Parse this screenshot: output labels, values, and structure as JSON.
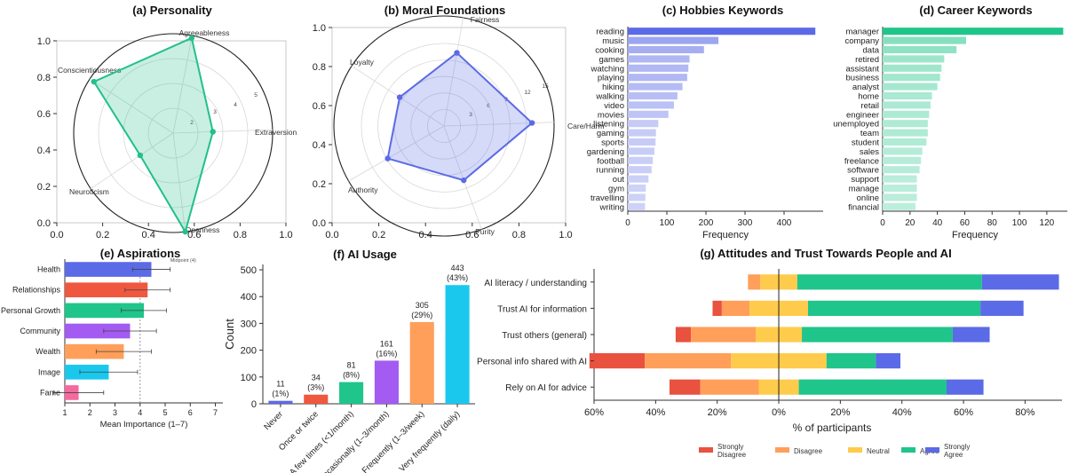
{
  "chart_data": [
    {
      "id": "personality",
      "type": "radar",
      "title": "(a) Personality",
      "axes": [
        "Agreeableness",
        "Extraversion",
        "Openness",
        "Neuroticism",
        "Conscientiousness"
      ],
      "values": [
        4.9,
        2.6,
        5.0,
        2.6,
        4.8
      ],
      "radial_ticks": [
        "2",
        "3",
        "4",
        "5"
      ],
      "radial_range": [
        1,
        5
      ],
      "frame_ticks": [
        "0.0",
        "0.2",
        "0.4",
        "0.6",
        "0.8",
        "1.0"
      ],
      "color": "#22c08a"
    },
    {
      "id": "moral",
      "type": "radar",
      "title": "(b) Moral Foundations",
      "axes": [
        "Fairness",
        "Care/Harm",
        "Purity",
        "Authority",
        "Loyalty"
      ],
      "values": [
        13.5,
        16.0,
        10.5,
        11.8,
        9.6
      ],
      "radial_ticks": [
        "3",
        "6",
        "9",
        "12",
        "15"
      ],
      "radial_range": [
        0,
        20
      ],
      "frame_ticks": [
        "0.0",
        "0.2",
        "0.4",
        "0.6",
        "0.8",
        "1.0"
      ],
      "color": "#5b6ae6"
    },
    {
      "id": "hobbies",
      "type": "bar",
      "orientation": "horizontal",
      "title": "(c) Hobbies Keywords",
      "xlabel": "Frequency",
      "xlim": [
        0,
        500
      ],
      "xticks": [
        "0",
        "100",
        "200",
        "300",
        "400"
      ],
      "categories": [
        "reading",
        "music",
        "cooking",
        "games",
        "watching",
        "playing",
        "hiking",
        "walking",
        "video",
        "movies",
        "listening",
        "gaming",
        "sports",
        "gardening",
        "football",
        "running",
        "out",
        "gym",
        "travelling",
        "writing"
      ],
      "values": [
        480,
        232,
        195,
        158,
        155,
        152,
        140,
        127,
        118,
        104,
        78,
        72,
        71,
        68,
        64,
        61,
        53,
        46,
        45,
        44
      ],
      "color": "#5b6ae6"
    },
    {
      "id": "career",
      "type": "bar",
      "orientation": "horizontal",
      "title": "(d) Career Keywords",
      "xlabel": "Frequency",
      "xlim": [
        0,
        135
      ],
      "xticks": [
        "0",
        "20",
        "40",
        "60",
        "80",
        "100",
        "120"
      ],
      "categories": [
        "manager",
        "company",
        "data",
        "retired",
        "assistant",
        "business",
        "analyst",
        "home",
        "retail",
        "engineer",
        "unemployed",
        "team",
        "student",
        "sales",
        "freelance",
        "software",
        "support",
        "manage",
        "online",
        "financial"
      ],
      "values": [
        132,
        61,
        54,
        45,
        43,
        42,
        40,
        36,
        35,
        34,
        33,
        33,
        32,
        29,
        28,
        27,
        25,
        25,
        25,
        24
      ],
      "color": "#1fc58a"
    },
    {
      "id": "aspirations",
      "type": "bar",
      "orientation": "horizontal",
      "title": "(e) Aspirations",
      "xlabel": "Mean Importance (1–7)",
      "xlim": [
        1,
        7.3
      ],
      "xticks": [
        "1",
        "2",
        "3",
        "4",
        "5",
        "6",
        "7"
      ],
      "midpoint_label": "Midpoint (4)",
      "categories": [
        "Health",
        "Relationships",
        "Personal Growth",
        "Community",
        "Wealth",
        "Image",
        "Fame"
      ],
      "values": [
        4.45,
        4.3,
        4.15,
        3.6,
        3.35,
        2.75,
        1.55
      ],
      "errors": [
        0.75,
        0.9,
        0.9,
        1.05,
        1.1,
        1.15,
        1.0
      ],
      "colors": [
        "#5b6ae6",
        "#f0573f",
        "#1fc58a",
        "#a35bf2",
        "#ff9f5a",
        "#1ac8ee",
        "#f56a9c"
      ]
    },
    {
      "id": "ai_usage",
      "type": "bar",
      "title": "(f) AI Usage",
      "ylabel": "Count",
      "ylim": [
        0,
        520
      ],
      "yticks": [
        "0",
        "100",
        "200",
        "300",
        "400",
        "500"
      ],
      "categories": [
        "Never",
        "Once or twice",
        "A few times (<1/month)",
        "Occasionally (1–3/month)",
        "Frequently (1–3/week)",
        "Very frequently (daily)"
      ],
      "values": [
        11,
        34,
        81,
        161,
        305,
        443
      ],
      "value_labels": [
        "11",
        "34",
        "81",
        "161",
        "305",
        "443"
      ],
      "pct_labels": [
        "(1%)",
        "(3%)",
        "(8%)",
        "(16%)",
        "(29%)",
        "(43%)"
      ],
      "colors": [
        "#5b6ae6",
        "#f0573f",
        "#1fc58a",
        "#a35bf2",
        "#ff9f5a",
        "#1ac8ee"
      ]
    },
    {
      "id": "attitudes",
      "type": "diverging_bar",
      "title": "(g) Attitudes and Trust Towards People and AI",
      "xlabel": "% of participants",
      "xticks": [
        "60%",
        "40%",
        "20%",
        "0%",
        "20%",
        "40%",
        "60%",
        "80%"
      ],
      "xtick_values": [
        -60,
        -40,
        -20,
        0,
        20,
        40,
        60,
        80
      ],
      "xlim": [
        -60,
        92
      ],
      "categories": [
        "AI literacy / understanding",
        "Trust AI for information",
        "Trust others (general)",
        "Personal info shared with AI",
        "Rely on AI for advice"
      ],
      "series": [
        {
          "name": "Strongly Disagree",
          "values": [
            0,
            3,
            5,
            18,
            10
          ],
          "color": "#e8523f"
        },
        {
          "name": "Disagree",
          "values": [
            4,
            9,
            21,
            28,
            19
          ],
          "color": "#ff9f5a"
        },
        {
          "name": "Neutral",
          "values": [
            12,
            19,
            15,
            31,
            13
          ],
          "color": "#ffcb4c"
        },
        {
          "name": "Agree",
          "values": [
            60,
            56,
            49,
            16,
            48
          ],
          "color": "#1fc58a"
        },
        {
          "name": "Strongly Agree",
          "values": [
            25,
            14,
            12,
            8,
            12
          ],
          "color": "#5b6ae6"
        }
      ],
      "legend_labels": [
        "Strongly\nDisagree",
        "Disagree",
        "Neutral",
        "Agree",
        "Strongly\nAgree"
      ]
    }
  ]
}
